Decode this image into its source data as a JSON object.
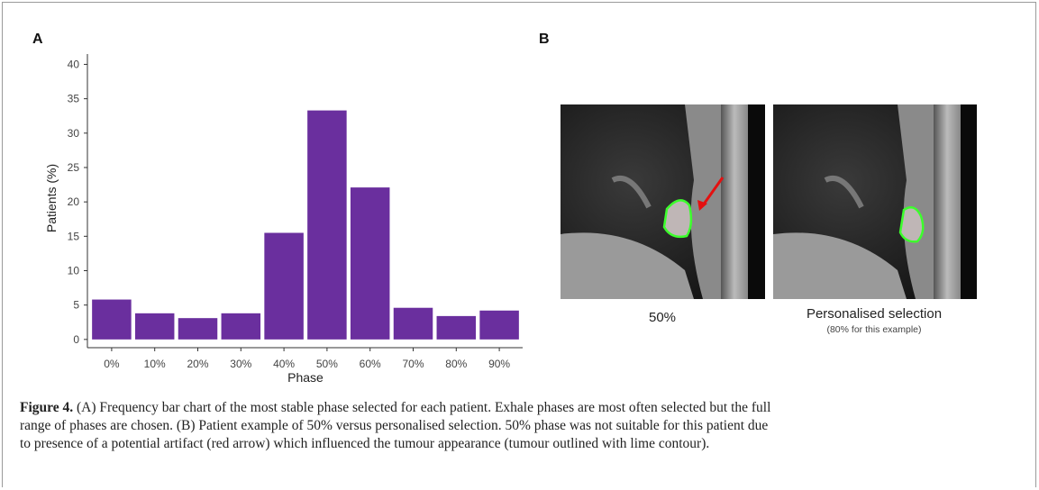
{
  "chart_data": {
    "type": "bar",
    "panel_label": "A",
    "xlabel": "Phase",
    "ylabel": "Patients (%)",
    "categories": [
      "0%",
      "10%",
      "20%",
      "30%",
      "40%",
      "50%",
      "60%",
      "70%",
      "80%",
      "90%"
    ],
    "values": [
      5.8,
      3.8,
      3.1,
      3.8,
      15.5,
      33.3,
      22.1,
      4.6,
      3.4,
      4.2
    ],
    "color": "#6a2f9e",
    "ylim": [
      -1.2,
      41.5
    ],
    "yticks": [
      0,
      5,
      10,
      15,
      20,
      25,
      30,
      35,
      40
    ],
    "grid": false
  },
  "panel_b": {
    "label": "B",
    "images": [
      {
        "caption": "50%"
      },
      {
        "caption": "Personalised selection",
        "subcaption": "(80% for this example)"
      }
    ]
  },
  "figure_caption": {
    "label": "Figure 4.",
    "lines": [
      "(A) Frequency bar chart of the most stable phase selected for each patient. Exhale phases are most often selected but the full",
      "range of phases are chosen. (B) Patient example of 50% versus personalised selection. 50% phase was not suitable for this patient due",
      "to presence of a potential artifact (red arrow) which influenced the tumour appearance (tumour outlined with lime contour)."
    ]
  }
}
